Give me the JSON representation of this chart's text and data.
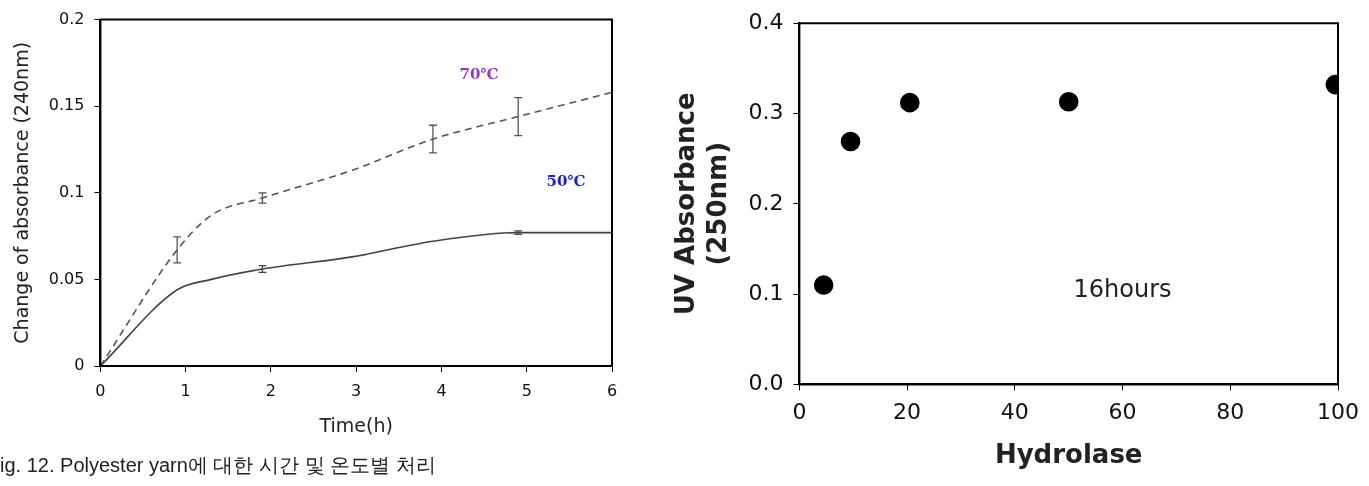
{
  "chart_data": [
    {
      "type": "line",
      "xlabel": "Time(h)",
      "ylabel": "Change of absorbance (240nm)",
      "xlim": [
        0,
        6
      ],
      "xticks": [
        0,
        1,
        2,
        3,
        4,
        5,
        6
      ],
      "ylim": [
        0,
        0.2
      ],
      "yticks": [
        0,
        0.05,
        0.1,
        0.15,
        0.2
      ],
      "grid": false,
      "legend": false,
      "marker": "none",
      "series": [
        {
          "color": "#555555",
          "line_style": "dashed",
          "x": [
            0,
            0.9,
            1.3,
            1.9,
            2.95,
            3.9,
            4.9,
            6
          ],
          "values": [
            0,
            0.067,
            0.087,
            0.097,
            0.113,
            0.131,
            0.144,
            0.158
          ],
          "errors": [
            null,
            0.0075,
            null,
            0.003,
            null,
            0.008,
            0.011,
            null
          ]
        },
        {
          "color": "#444444",
          "line_style": "solid",
          "x": [
            0,
            0.9,
            1.3,
            1.9,
            2.95,
            3.9,
            4.9,
            6
          ],
          "values": [
            0,
            0.044,
            0.05,
            0.056,
            0.063,
            0.072,
            0.077,
            0.077
          ],
          "errors": [
            null,
            null,
            null,
            0.002,
            null,
            null,
            0.001,
            null
          ]
        }
      ],
      "annotations": [
        "70℃",
        "50℃",
        "ig. 12. Polyester yarn에 대한 시간 및 온도별 처리"
      ]
    },
    {
      "type": "scatter",
      "xlabel": "Hydrolase",
      "ylabel": "UV Absorbance\n(250nm)",
      "xlim": [
        0,
        100
      ],
      "xticks": [
        0,
        20,
        40,
        60,
        80,
        100
      ],
      "ylim": [
        0,
        0.4
      ],
      "yticks": [
        {
          "value": 0,
          "label": "0.0"
        },
        {
          "value": 0.1,
          "label": "0.1"
        },
        {
          "value": 0.2,
          "label": "0.2"
        },
        {
          "value": 0.3,
          "label": "0.3"
        },
        {
          "value": 0.4,
          "label": "0.4"
        }
      ],
      "grid": false,
      "legend": false,
      "marker": "circle",
      "series": [
        {
          "color": "#000000",
          "x": [
            4.5,
            9.5,
            20.5,
            50,
            99.5
          ],
          "values": [
            0.11,
            0.269,
            0.312,
            0.313,
            0.332
          ]
        }
      ],
      "annotations": [
        "16hours"
      ]
    }
  ]
}
